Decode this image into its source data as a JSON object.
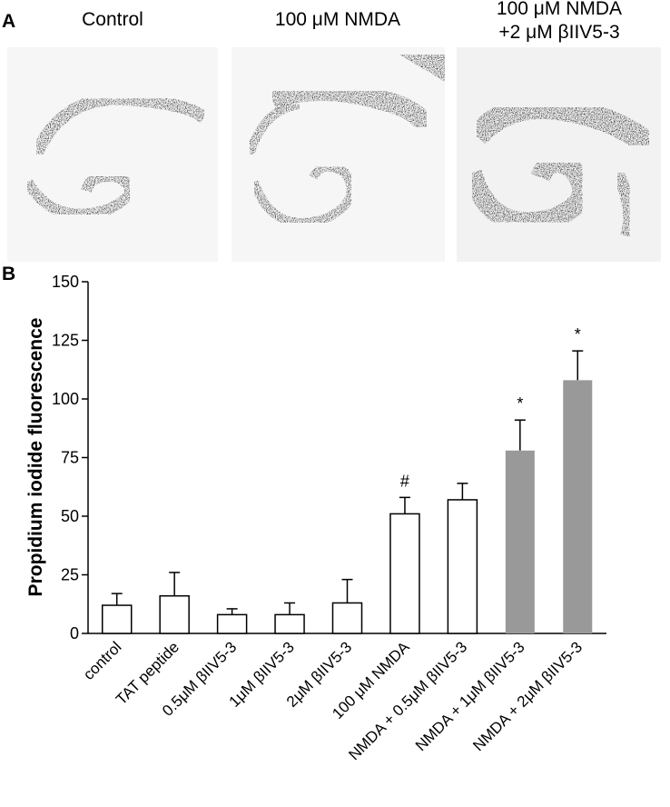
{
  "panel_a": {
    "label": "A",
    "captions": [
      [
        "Control"
      ],
      [
        "100 μM NMDA"
      ],
      [
        "100 μM NMDA",
        "+2 μM βIIV5-3"
      ]
    ]
  },
  "chart_data": {
    "type": "bar",
    "panel_label": "B",
    "y_label": "Propidium iodide fluorescence",
    "categories": [
      "control",
      "TAT peptide",
      "0.5μM βIIV5-3",
      "1μM βIIV5-3",
      "2μM βIIV5-3",
      "100 μM NMDA",
      "NMDA + 0.5μM βIIV5-3",
      "NMDA + 1μM βIIV5-3",
      "NMDA + 2μM βIIV5-3"
    ],
    "values": [
      12,
      16,
      8,
      8,
      13,
      51,
      57,
      78,
      108
    ],
    "errors": [
      5,
      10,
      2.5,
      5,
      10,
      7,
      7,
      13,
      12.5
    ],
    "colors": [
      "#ffffff",
      "#ffffff",
      "#ffffff",
      "#ffffff",
      "#ffffff",
      "#ffffff",
      "#ffffff",
      "#999999",
      "#999999"
    ],
    "value_annotations": [
      null,
      null,
      null,
      null,
      null,
      "#",
      null,
      "*",
      "*"
    ],
    "ylim": [
      0,
      150
    ],
    "yticks": [
      0,
      25,
      50,
      75,
      100,
      125,
      150
    ]
  }
}
